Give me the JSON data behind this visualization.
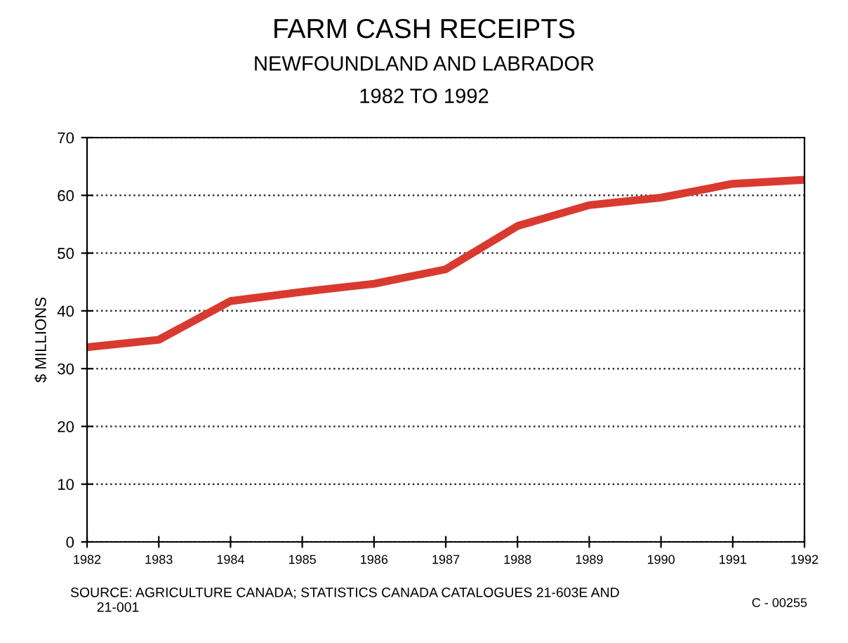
{
  "chart_data": {
    "type": "line",
    "title": "FARM CASH RECEIPTS",
    "subtitle": "NEWFOUNDLAND AND LABRADOR\n1982 TO 1992",
    "ylabel": "$ MILLIONS",
    "x": [
      1982,
      1983,
      1984,
      1985,
      1986,
      1987,
      1988,
      1989,
      1990,
      1991,
      1992
    ],
    "series": [
      {
        "color": "#d93a30",
        "values": [
          33.7,
          35,
          41.7,
          43.3,
          44.7,
          47.2,
          54.7,
          58.3,
          59.6,
          62,
          62.7
        ]
      }
    ],
    "xlim": [
      1982,
      1992
    ],
    "xticks": [
      1982,
      1983,
      1984,
      1985,
      1986,
      1987,
      1988,
      1989,
      1990,
      1991,
      1992
    ],
    "ylim": [
      0,
      70
    ],
    "yticks": [
      0,
      10,
      20,
      30,
      40,
      50,
      60,
      70
    ],
    "grid": "y",
    "line_style": "solid",
    "annotations": [
      "SOURCE: AGRICULTURE CANADA; STATISTICS CANADA CATALOGUES 21-603E AND\n       21-001",
      "C - 00255"
    ]
  }
}
